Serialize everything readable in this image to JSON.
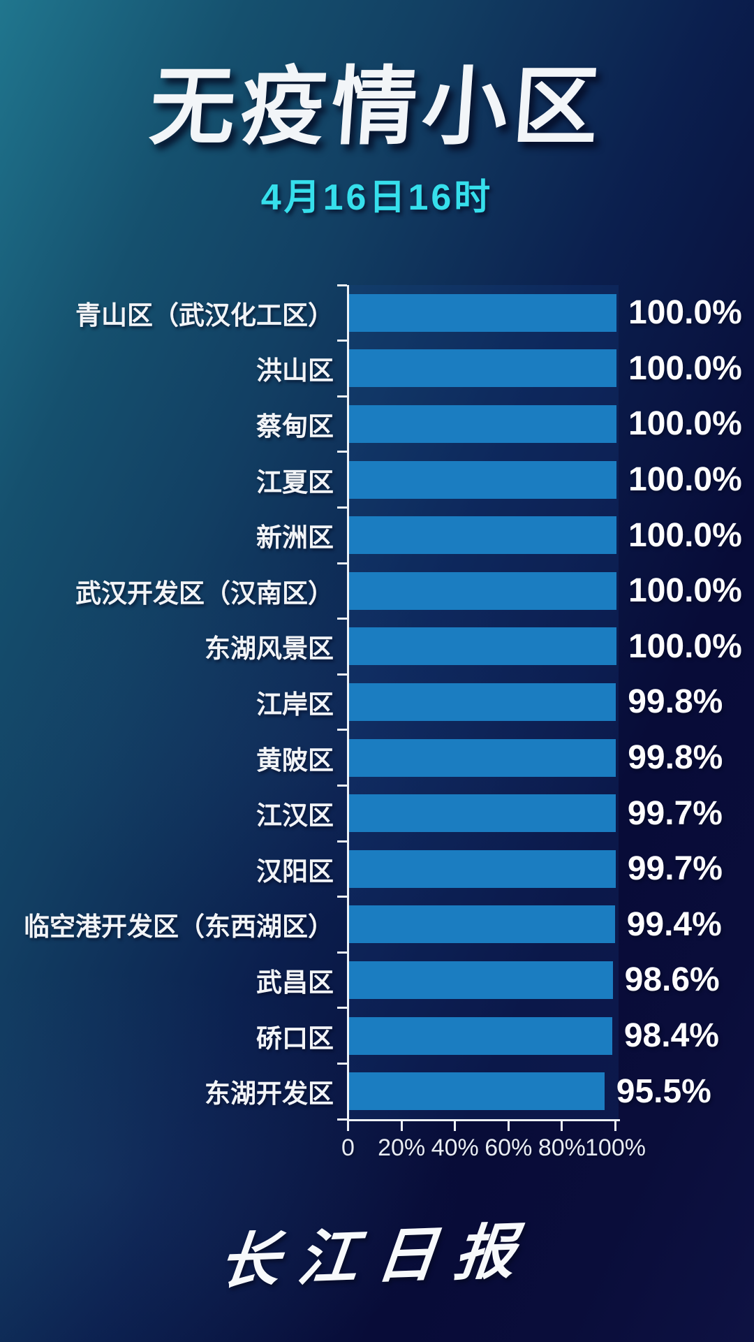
{
  "title": "无疫情小区",
  "subtitle": "4月16日16时",
  "footer": {
    "logo_text": "长江日报"
  },
  "colors": {
    "bar": "#1b7dc1",
    "subtitle_accent": "#36dfec",
    "axis": "#eef2f6",
    "background_teal": "#20768e",
    "background_navy": "#080c38"
  },
  "chart_data": {
    "type": "bar",
    "orientation": "horizontal",
    "title": "无疫情小区",
    "subtitle": "4月16日16时",
    "categories": [
      "青山区（武汉化工区）",
      "洪山区",
      "蔡甸区",
      "江夏区",
      "新洲区",
      "武汉开发区（汉南区）",
      "东湖风景区",
      "江岸区",
      "黄陂区",
      "江汉区",
      "汉阳区",
      "临空港开发区（东西湖区）",
      "武昌区",
      "硚口区",
      "东湖开发区"
    ],
    "values": [
      100.0,
      100.0,
      100.0,
      100.0,
      100.0,
      100.0,
      100.0,
      99.8,
      99.8,
      99.7,
      99.7,
      99.4,
      98.6,
      98.4,
      95.5
    ],
    "value_labels": [
      "100.0%",
      "100.0%",
      "100.0%",
      "100.0%",
      "100.0%",
      "100.0%",
      "100.0%",
      "99.8%",
      "99.8%",
      "99.7%",
      "99.7%",
      "99.4%",
      "98.6%",
      "98.4%",
      "95.5%"
    ],
    "xlabel": "",
    "ylabel": "",
    "xlim": [
      0,
      100
    ],
    "x_ticks": [
      "0",
      "20%",
      "40%",
      "60%",
      "80%",
      "100%"
    ],
    "grid": false,
    "legend": false
  }
}
